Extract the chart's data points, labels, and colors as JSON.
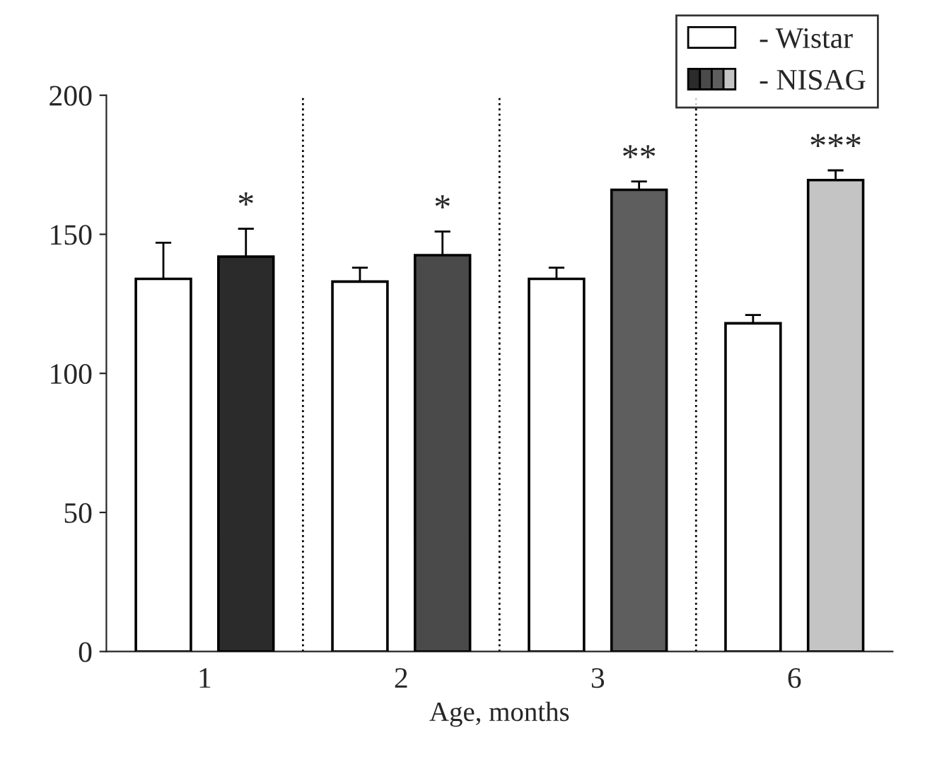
{
  "chart_data": {
    "type": "bar",
    "xlabel": "Age, months",
    "categories": [
      "1",
      "2",
      "3",
      "6"
    ],
    "series": [
      {
        "name": "- Wistar",
        "color": "#ffffff",
        "values": [
          134,
          133,
          134,
          118
        ],
        "errors": [
          13,
          5,
          4,
          3
        ]
      },
      {
        "name": "- NISAG",
        "colors": [
          "#2b2b2b",
          "#4a4a4a",
          "#5e5e5e",
          "#c4c4c4"
        ],
        "values": [
          142,
          142.5,
          166,
          169.5
        ],
        "errors": [
          10,
          8.5,
          3,
          3.5
        ]
      }
    ],
    "ylim": [
      0,
      200
    ],
    "yticks": [
      0,
      50,
      100,
      150,
      200
    ],
    "annotations": [
      "*",
      "*",
      "**",
      "***"
    ],
    "legend": "top right",
    "grid": false
  }
}
